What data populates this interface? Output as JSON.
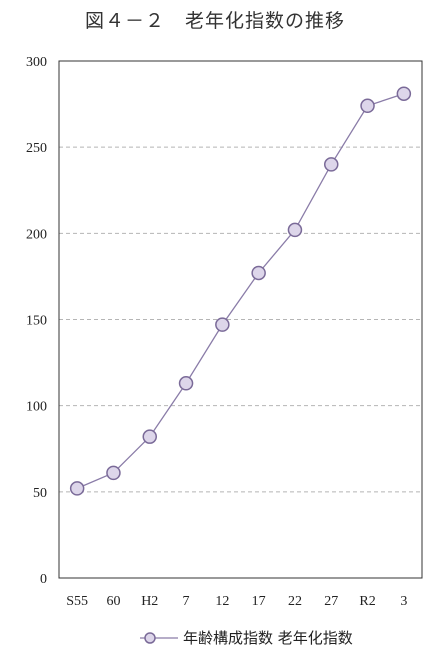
{
  "chart_data": {
    "type": "line",
    "title": "図４－２　老年化指数の推移",
    "categories": [
      "S55",
      "60",
      "H2",
      "7",
      "12",
      "17",
      "22",
      "27",
      "R2",
      "3"
    ],
    "ylim": [
      0,
      300
    ],
    "y_ticks": [
      0,
      50,
      100,
      150,
      200,
      250,
      300
    ],
    "grid": true,
    "legend_position": "bottom-right",
    "series": [
      {
        "name": "年齢構成指数 老年化指数",
        "values": [
          52,
          61,
          82,
          113,
          147,
          177,
          202,
          240,
          274,
          281
        ]
      }
    ],
    "colors": {
      "line": "#8a7ca8",
      "marker_fill": "#ddd6ea",
      "marker_stroke": "#7a6a98",
      "grid": "#b5b5b5",
      "axis": "#333333"
    }
  }
}
